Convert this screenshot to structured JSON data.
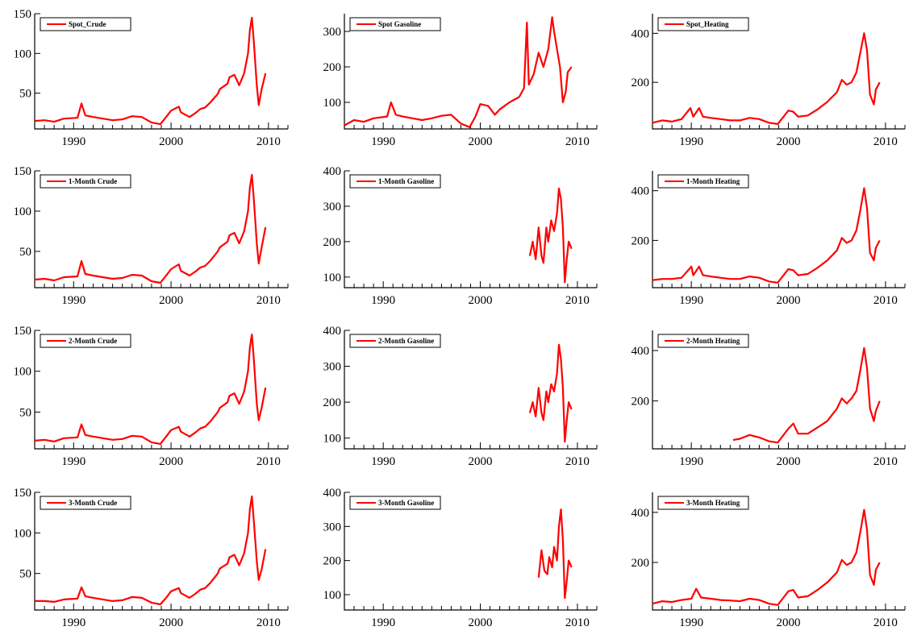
{
  "line_color": "#ff0000",
  "chart_data": [
    {
      "type": "line",
      "legend": "Spot_Crude",
      "xlim": [
        1986,
        2012
      ],
      "ylim": [
        5,
        150
      ],
      "x_ticks": [
        1990,
        2000,
        2010
      ],
      "y_ticks": [
        50,
        100,
        150
      ],
      "series": [
        {
          "x": [
            1986,
            1987,
            1988,
            1989,
            1990.4,
            1990.8,
            1991.2,
            1992,
            1993,
            1994,
            1995,
            1996,
            1997,
            1998,
            1998.9,
            1999.5,
            2000,
            2000.8,
            2001,
            2001.9,
            2002.5,
            2003,
            2003.5,
            2004,
            2004.8,
            2005,
            2005.8,
            2006,
            2006.5,
            2007,
            2007.5,
            2007.9,
            2008.1,
            2008.3,
            2008.5,
            2008.8,
            2009,
            2009.3,
            2009.7
          ],
          "y": [
            15,
            16,
            14,
            18,
            19,
            37,
            22,
            20,
            18,
            16,
            17,
            21,
            20,
            13,
            11,
            20,
            28,
            33,
            26,
            20,
            25,
            30,
            32,
            38,
            49,
            55,
            62,
            70,
            73,
            60,
            75,
            100,
            130,
            145,
            115,
            60,
            35,
            55,
            75
          ]
        }
      ]
    },
    {
      "type": "line",
      "legend": "Spot Gasoline",
      "xlim": [
        1986,
        2012
      ],
      "ylim": [
        25,
        350
      ],
      "x_ticks": [
        1990,
        2000,
        2010
      ],
      "y_ticks": [
        100,
        200,
        300
      ],
      "series": [
        {
          "x": [
            1986,
            1987,
            1988,
            1989,
            1990.4,
            1990.8,
            1991.3,
            1992,
            1993,
            1994,
            1995,
            1996,
            1997,
            1998,
            1998.9,
            1999.5,
            2000,
            2000.8,
            2001.5,
            2002,
            2003,
            2004,
            2004.5,
            2004.8,
            2005,
            2005.5,
            2006,
            2006.5,
            2007,
            2007.4,
            2007.6,
            2007.9,
            2008.2,
            2008.5,
            2008.8,
            2009,
            2009.4
          ],
          "y": [
            35,
            50,
            45,
            55,
            60,
            100,
            65,
            60,
            55,
            50,
            55,
            62,
            65,
            40,
            30,
            60,
            95,
            90,
            65,
            80,
            100,
            115,
            140,
            325,
            150,
            180,
            240,
            200,
            250,
            340,
            300,
            250,
            200,
            100,
            130,
            185,
            200
          ]
        }
      ]
    },
    {
      "type": "line",
      "legend": "Spot_Heating",
      "xlim": [
        1986,
        2012
      ],
      "ylim": [
        10,
        480
      ],
      "x_ticks": [
        1990,
        2000,
        2010
      ],
      "y_ticks": [
        200,
        400
      ],
      "series": [
        {
          "x": [
            1986,
            1987,
            1988,
            1989,
            1989.9,
            1990.2,
            1990.8,
            1991.2,
            1992,
            1993,
            1994,
            1995,
            1996,
            1997,
            1998,
            1998.9,
            1999.5,
            2000,
            2000.5,
            2001,
            2002,
            2003,
            2004,
            2005,
            2005.5,
            2006,
            2006.5,
            2007,
            2007.4,
            2007.8,
            2008.1,
            2008.4,
            2008.8,
            2009,
            2009.4
          ],
          "y": [
            35,
            45,
            40,
            50,
            95,
            60,
            95,
            60,
            55,
            50,
            45,
            45,
            55,
            50,
            35,
            30,
            60,
            85,
            80,
            60,
            65,
            90,
            120,
            160,
            210,
            190,
            200,
            240,
            320,
            400,
            330,
            150,
            110,
            170,
            200
          ]
        }
      ]
    },
    {
      "type": "line",
      "legend": "1-Month Crude",
      "xlim": [
        1986,
        2012
      ],
      "ylim": [
        5,
        150
      ],
      "x_ticks": [
        1990,
        2000,
        2010
      ],
      "y_ticks": [
        50,
        100,
        150
      ],
      "series": [
        {
          "x": [
            1986,
            1987,
            1988,
            1989,
            1990.4,
            1990.8,
            1991.2,
            1992,
            1993,
            1994,
            1995,
            1996,
            1997,
            1998,
            1998.9,
            1999.5,
            2000,
            2000.8,
            2001,
            2001.9,
            2002.5,
            2003,
            2003.5,
            2004,
            2004.8,
            2005,
            2005.8,
            2006,
            2006.5,
            2007,
            2007.5,
            2007.9,
            2008.1,
            2008.3,
            2008.5,
            2008.8,
            2009,
            2009.3,
            2009.7
          ],
          "y": [
            15,
            16,
            14,
            18,
            19,
            38,
            22,
            20,
            18,
            16,
            17,
            21,
            20,
            13,
            11,
            20,
            28,
            34,
            26,
            20,
            25,
            30,
            32,
            38,
            50,
            55,
            62,
            70,
            73,
            60,
            75,
            100,
            130,
            145,
            115,
            60,
            35,
            55,
            80
          ]
        }
      ]
    },
    {
      "type": "line",
      "legend": "1-Month Gasoline",
      "xlim": [
        1986,
        2012
      ],
      "ylim": [
        70,
        400
      ],
      "x_ticks": [
        1990,
        2000,
        2010
      ],
      "y_ticks": [
        100,
        200,
        300,
        400
      ],
      "series": [
        {
          "x": [
            2005.1,
            2005.4,
            2005.7,
            2006,
            2006.3,
            2006.5,
            2006.8,
            2007,
            2007.3,
            2007.6,
            2007.9,
            2008.1,
            2008.3,
            2008.5,
            2008.7,
            2008.9,
            2009.1,
            2009.4
          ],
          "y": [
            160,
            200,
            150,
            240,
            160,
            140,
            240,
            200,
            260,
            230,
            280,
            350,
            320,
            240,
            85,
            150,
            200,
            180
          ]
        }
      ]
    },
    {
      "type": "line",
      "legend": "1-Month Heating",
      "xlim": [
        1986,
        2012
      ],
      "ylim": [
        10,
        480
      ],
      "x_ticks": [
        1990,
        2000,
        2010
      ],
      "y_ticks": [
        200,
        400
      ],
      "series": [
        {
          "x": [
            1986,
            1987,
            1988,
            1989,
            1990,
            1990.2,
            1990.8,
            1991.2,
            1992,
            1993,
            1994,
            1995,
            1996,
            1997,
            1998,
            1998.9,
            1999.5,
            2000,
            2000.5,
            2001,
            2002,
            2003,
            2004,
            2005,
            2005.5,
            2006,
            2006.5,
            2007,
            2007.4,
            2007.8,
            2008.1,
            2008.4,
            2008.8,
            2009,
            2009.4
          ],
          "y": [
            40,
            45,
            45,
            50,
            95,
            60,
            95,
            60,
            55,
            50,
            45,
            45,
            55,
            50,
            35,
            30,
            60,
            85,
            80,
            60,
            65,
            90,
            120,
            160,
            210,
            190,
            200,
            240,
            320,
            410,
            330,
            150,
            120,
            170,
            200
          ]
        }
      ]
    },
    {
      "type": "line",
      "legend": "2-Month Crude",
      "xlim": [
        1986,
        2012
      ],
      "ylim": [
        5,
        150
      ],
      "x_ticks": [
        1990,
        2000,
        2010
      ],
      "y_ticks": [
        50,
        100,
        150
      ],
      "series": [
        {
          "x": [
            1986,
            1987,
            1988,
            1989,
            1990.4,
            1990.8,
            1991.2,
            1992,
            1993,
            1994,
            1995,
            1996,
            1997,
            1998,
            1998.9,
            1999.5,
            2000,
            2000.8,
            2001,
            2001.9,
            2002.5,
            2003,
            2003.5,
            2004,
            2004.8,
            2005,
            2005.8,
            2006,
            2006.5,
            2007,
            2007.5,
            2007.9,
            2008.1,
            2008.3,
            2008.5,
            2008.8,
            2009,
            2009.3,
            2009.7
          ],
          "y": [
            15,
            16,
            14,
            18,
            19,
            35,
            22,
            20,
            18,
            16,
            17,
            21,
            20,
            13,
            11,
            20,
            28,
            32,
            26,
            20,
            25,
            30,
            32,
            38,
            50,
            55,
            62,
            70,
            73,
            60,
            75,
            100,
            130,
            145,
            115,
            60,
            40,
            55,
            80
          ]
        }
      ]
    },
    {
      "type": "line",
      "legend": "2-Month Gasoline",
      "xlim": [
        1986,
        2012
      ],
      "ylim": [
        70,
        400
      ],
      "x_ticks": [
        1990,
        2000,
        2010
      ],
      "y_ticks": [
        100,
        200,
        300,
        400
      ],
      "series": [
        {
          "x": [
            2005.1,
            2005.4,
            2005.7,
            2006,
            2006.3,
            2006.5,
            2006.8,
            2007,
            2007.3,
            2007.6,
            2007.9,
            2008.1,
            2008.3,
            2008.5,
            2008.7,
            2008.9,
            2009.1,
            2009.4
          ],
          "y": [
            170,
            200,
            160,
            240,
            170,
            150,
            230,
            200,
            250,
            230,
            280,
            360,
            320,
            240,
            90,
            150,
            200,
            180
          ]
        }
      ]
    },
    {
      "type": "line",
      "legend": "2-Month Heating",
      "xlim": [
        1986,
        2012
      ],
      "ylim": [
        10,
        480
      ],
      "x_ticks": [
        1990,
        2000,
        2010
      ],
      "y_ticks": [
        200,
        400
      ],
      "series": [
        {
          "x": [
            1994.3,
            1995,
            1996,
            1997,
            1998,
            1998.9,
            1999.5,
            2000,
            2000.5,
            2001,
            2002,
            2003,
            2004,
            2005,
            2005.5,
            2006,
            2006.5,
            2007,
            2007.4,
            2007.8,
            2008.1,
            2008.4,
            2008.8,
            2009,
            2009.4
          ],
          "y": [
            45,
            50,
            65,
            55,
            40,
            35,
            65,
            90,
            110,
            70,
            70,
            95,
            120,
            170,
            210,
            190,
            210,
            240,
            320,
            410,
            330,
            170,
            120,
            160,
            200
          ]
        }
      ]
    },
    {
      "type": "line",
      "legend": "3-Month Crude",
      "xlim": [
        1986,
        2012
      ],
      "ylim": [
        5,
        150
      ],
      "x_ticks": [
        1990,
        2000,
        2010
      ],
      "y_ticks": [
        50,
        100,
        150
      ],
      "series": [
        {
          "x": [
            1986,
            1987,
            1988,
            1989,
            1990.4,
            1990.8,
            1991.2,
            1992,
            1993,
            1994,
            1995,
            1996,
            1997,
            1998,
            1998.9,
            1999.5,
            2000,
            2000.8,
            2001,
            2001.9,
            2002.5,
            2003,
            2003.5,
            2004,
            2004.8,
            2005,
            2005.8,
            2006,
            2006.5,
            2007,
            2007.5,
            2007.9,
            2008.1,
            2008.3,
            2008.5,
            2008.8,
            2009,
            2009.3,
            2009.7
          ],
          "y": [
            16,
            16,
            15,
            18,
            19,
            33,
            22,
            20,
            18,
            16,
            17,
            21,
            20,
            14,
            12,
            20,
            28,
            32,
            26,
            20,
            25,
            30,
            32,
            38,
            50,
            56,
            62,
            70,
            73,
            60,
            75,
            100,
            130,
            145,
            115,
            65,
            42,
            55,
            80
          ]
        }
      ]
    },
    {
      "type": "line",
      "legend": "3-Month Gasoline",
      "xlim": [
        1986,
        2012
      ],
      "ylim": [
        55,
        400
      ],
      "x_ticks": [
        1990,
        2000,
        2010
      ],
      "y_ticks": [
        100,
        200,
        300,
        400
      ],
      "series": [
        {
          "x": [
            2006,
            2006.3,
            2006.6,
            2006.9,
            2007.1,
            2007.4,
            2007.6,
            2007.9,
            2008.1,
            2008.3,
            2008.5,
            2008.7,
            2008.9,
            2009.1,
            2009.4
          ],
          "y": [
            150,
            230,
            170,
            160,
            210,
            180,
            240,
            200,
            300,
            350,
            260,
            90,
            140,
            200,
            180
          ]
        }
      ]
    },
    {
      "type": "line",
      "legend": "3-Month Heating",
      "xlim": [
        1986,
        2012
      ],
      "ylim": [
        10,
        480
      ],
      "x_ticks": [
        1990,
        2000,
        2010
      ],
      "y_ticks": [
        200,
        400
      ],
      "series": [
        {
          "x": [
            1986,
            1987,
            1988,
            1989,
            1990,
            1990.5,
            1991,
            1992,
            1993,
            1994,
            1995,
            1996,
            1997,
            1998,
            1998.9,
            1999.5,
            2000,
            2000.5,
            2001,
            2002,
            2003,
            2004,
            2005,
            2005.5,
            2006,
            2006.5,
            2007,
            2007.4,
            2007.8,
            2008.1,
            2008.4,
            2008.8,
            2009,
            2009.4
          ],
          "y": [
            35,
            45,
            42,
            50,
            55,
            95,
            60,
            55,
            50,
            48,
            45,
            55,
            50,
            35,
            30,
            60,
            85,
            90,
            60,
            65,
            90,
            120,
            160,
            210,
            190,
            200,
            240,
            320,
            410,
            330,
            150,
            110,
            170,
            200
          ]
        }
      ]
    }
  ]
}
